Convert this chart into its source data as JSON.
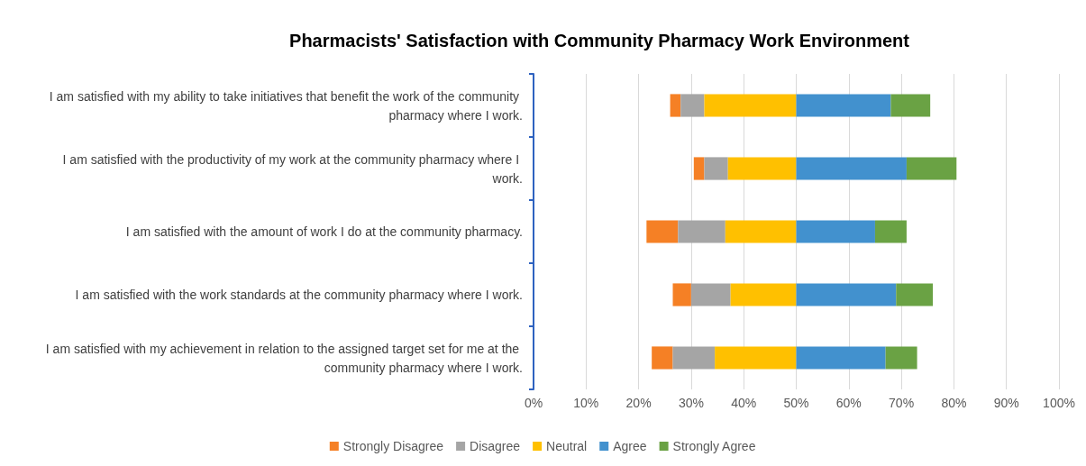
{
  "chart_data": {
    "type": "bar",
    "orientation": "horizontal",
    "title": "Pharmacists' Satisfaction with Community Pharmacy Work Environment",
    "categories": [
      "I am satisfied with my ability to take initiatives that benefit the work of the community pharmacy where I work.",
      "I am satisfied with the productivity of my work at the community pharmacy where I work.",
      "I am satisfied with the amount of work I do at the community pharmacy.",
      "I am satisfied with the work standards at the community pharmacy where I work.",
      "I am satisfied with my achievement in relation to the assigned target set for me at the community pharmacy where I work."
    ],
    "series": [
      {
        "name": "Strongly Disagree",
        "color": "#f58025",
        "base": [
          26,
          30.5,
          21.5,
          26.5,
          22.5
        ],
        "values": [
          2,
          2,
          6,
          3.5,
          4
        ]
      },
      {
        "name": "Disagree",
        "color": "#a5a5a5",
        "base": [
          28,
          32.5,
          27.5,
          30,
          26.5
        ],
        "values": [
          4.5,
          4.5,
          9,
          7.5,
          8
        ]
      },
      {
        "name": "Neutral",
        "color": "#ffc000",
        "base": [
          32.5,
          37,
          36.5,
          37.5,
          34.5
        ],
        "values": [
          17.5,
          13,
          13.5,
          12.5,
          15.5
        ]
      },
      {
        "name": "Agree",
        "color": "#4291ce",
        "base": [
          50,
          50,
          50,
          50,
          50
        ],
        "values": [
          18,
          21,
          15,
          19,
          17
        ]
      },
      {
        "name": "Strongly Agree",
        "color": "#6aa244",
        "base": [
          68,
          71,
          65,
          69,
          67
        ],
        "values": [
          7.5,
          9.5,
          6,
          7,
          6
        ]
      }
    ],
    "xlim": [
      0,
      100
    ],
    "xticks": [
      {
        "value": 0,
        "label": "0%"
      },
      {
        "value": 10,
        "label": "10%"
      },
      {
        "value": 20,
        "label": "20%"
      },
      {
        "value": 30,
        "label": "30%"
      },
      {
        "value": 40,
        "label": "40%"
      },
      {
        "value": 50,
        "label": "50%"
      },
      {
        "value": 60,
        "label": "60%"
      },
      {
        "value": 70,
        "label": "70%"
      },
      {
        "value": 80,
        "label": "80%"
      },
      {
        "value": 90,
        "label": "90%"
      },
      {
        "value": 100,
        "label": "100%"
      }
    ],
    "grid": "x",
    "legend": "bottom"
  }
}
